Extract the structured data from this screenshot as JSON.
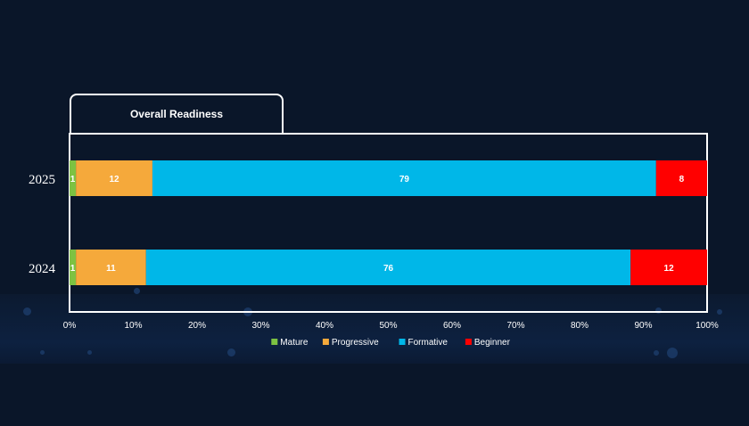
{
  "chart_data": {
    "type": "bar",
    "orientation": "horizontal",
    "stacked": true,
    "title": "Overall Readiness",
    "categories": [
      "2025",
      "2024"
    ],
    "series": [
      {
        "name": "Mature",
        "color": "#7dc242",
        "values": [
          1,
          1
        ]
      },
      {
        "name": "Progressive",
        "color": "#f5a93b",
        "values": [
          12,
          11
        ]
      },
      {
        "name": "Formative",
        "color": "#00b7e8",
        "values": [
          79,
          76
        ]
      },
      {
        "name": "Beginner",
        "color": "#ff0000",
        "values": [
          8,
          12
        ]
      }
    ],
    "xlim": [
      0,
      100
    ],
    "x_ticks": [
      "0%",
      "10%",
      "20%",
      "30%",
      "40%",
      "50%",
      "60%",
      "70%",
      "80%",
      "90%",
      "100%"
    ],
    "grid": false,
    "legend_position": "bottom",
    "label_color": "#ffffff"
  }
}
